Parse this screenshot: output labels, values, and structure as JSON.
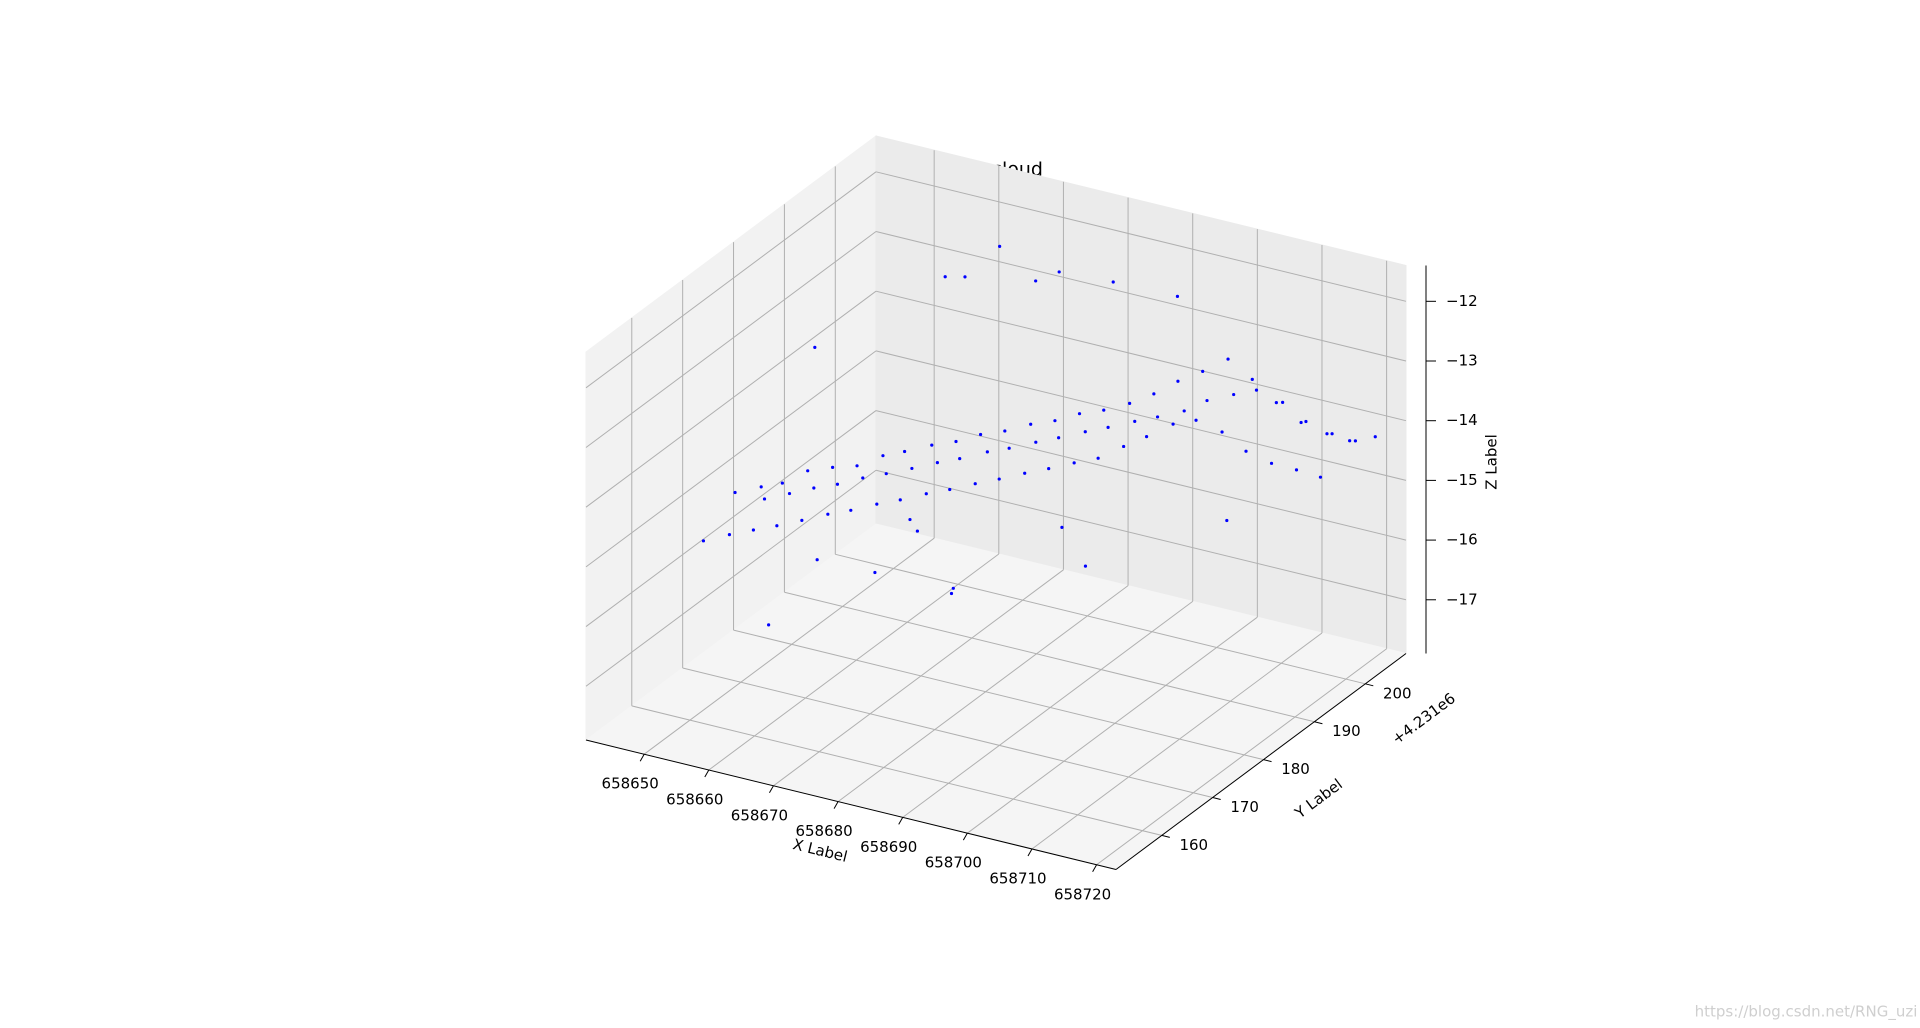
{
  "chart_data": {
    "type": "scatter3d",
    "title": "point cloud",
    "xlabel": "X Label",
    "ylabel": "Y Label",
    "zlabel": "Z Label",
    "y_offset": "+4.231e6",
    "watermark": "https://blog.csdn.net/RNG_uzi",
    "color": "#0000ff",
    "xlim": [
      658641,
      658723
    ],
    "ylim": [
      151,
      208
    ],
    "zlim": [
      -17.9,
      -11.4
    ],
    "xticks": [
      658650,
      658660,
      658670,
      658680,
      658690,
      658700,
      658710,
      658720
    ],
    "yticks": [
      160,
      170,
      180,
      190,
      200
    ],
    "zticks": [
      {
        "value": -17,
        "label": "−17"
      },
      {
        "value": -16,
        "label": "−16"
      },
      {
        "value": -15,
        "label": "−15"
      },
      {
        "value": -14,
        "label": "−14"
      },
      {
        "value": -13,
        "label": "−13"
      },
      {
        "value": -12,
        "label": "−12"
      }
    ],
    "grid": true,
    "x": [
      658645,
      658645.8,
      658646.5,
      658648,
      658648.9,
      658649.5,
      658651,
      658651.7,
      658652.4,
      658654,
      658654.6,
      658655.5,
      658657,
      658657.9,
      658658.4,
      658660,
      658660.5,
      658661.4,
      658663,
      658663.8,
      658664.5,
      658666,
      658666.6,
      658667.5,
      658669,
      658669.7,
      658670.4,
      658672,
      658672.9,
      658673.5,
      658675,
      658675.6,
      658676.4,
      658678,
      658678.8,
      658679.5,
      658681,
      658681.7,
      658682.4,
      658684,
      658684.9,
      658685.5,
      658687,
      658687.6,
      658688.4,
      658690,
      658690.8,
      658691.5,
      658693,
      658693.7,
      658694.4,
      658696,
      658696.9,
      658697.5,
      658699,
      658699.6,
      658700.4,
      658702,
      658702.8,
      658703.5,
      658705,
      658705.7,
      658706.4,
      658708,
      658708.9,
      658709.5,
      658711,
      658711.6,
      658712.4,
      658714,
      658714.8,
      658715.5,
      658717,
      658717.7,
      658718.4,
      658720,
      658720.5,
      658721,
      658650,
      658655,
      658660,
      658665,
      658668,
      658672,
      658662,
      658670,
      658678,
      658684,
      658690,
      658675,
      658648,
      658680,
      658652,
      658700,
      658686,
      658658
    ],
    "y": [
      169,
      174.2,
      179.1,
      170.3,
      175.4,
      180.2,
      171.2,
      176,
      181.3,
      172,
      177.3,
      182,
      173.1,
      178,
      183.3,
      174.4,
      179.5,
      184.1,
      175.1,
      180.4,
      185.2,
      176.4,
      181.1,
      186.4,
      177.2,
      182.5,
      187.1,
      178.5,
      183.2,
      188.6,
      179.3,
      184.6,
      189.2,
      180.5,
      185.3,
      190.5,
      181.4,
      186.7,
      191.3,
      182.6,
      187.4,
      192.6,
      183.5,
      188.8,
      193.4,
      184.7,
      189.5,
      194.7,
      185.6,
      190.9,
      195.5,
      186.8,
      191.6,
      196.8,
      187.5,
      192.9,
      197.6,
      188.9,
      193.7,
      198.9,
      189.6,
      195,
      199.7,
      190.9,
      195.7,
      200.9,
      191.8,
      197,
      201.8,
      193,
      197.8,
      203,
      194.1,
      199.2,
      203.9,
      195,
      200.1,
      204.5,
      185,
      190,
      192,
      195,
      198,
      200,
      188,
      186,
      197,
      200,
      205,
      180,
      178,
      195,
      182,
      202,
      192,
      200
    ],
    "z": [
      -15.6,
      -15.1,
      -15.5,
      -15.5,
      -15,
      -15.4,
      -15.4,
      -14.9,
      -15.3,
      -15.3,
      -14.7,
      -15.2,
      -15.2,
      -14.6,
      -15.1,
      -15.1,
      -14.6,
      -15,
      -15,
      -14.4,
      -14.9,
      -14.9,
      -14.3,
      -14.8,
      -14.8,
      -14.2,
      -14.7,
      -14.7,
      -14.1,
      -14.6,
      -14.6,
      -14,
      -14.5,
      -14.5,
      -13.9,
      -14.4,
      -14.4,
      -13.8,
      -14.3,
      -14.3,
      -13.7,
      -14.2,
      -14.2,
      -13.6,
      -14.1,
      -14.1,
      -13.5,
      -14,
      -14,
      -13.4,
      -13.9,
      -13.8,
      -13.2,
      -13.8,
      -13.6,
      -13,
      -13.6,
      -13.4,
      -12.8,
      -13.5,
      -13.3,
      -12.6,
      -13.4,
      -13.5,
      -12.9,
      -13.6,
      -13.8,
      -13.3,
      -13.9,
      -14,
      -13.6,
      -14.1,
      -14.1,
      -13.8,
      -14.2,
      -14.2,
      -13.9,
      -14.1,
      -16.8,
      -17.2,
      -16.5,
      -12.3,
      -11.9,
      -12.5,
      -16,
      -16.9,
      -12,
      -12.2,
      -12.6,
      -16.3,
      -17.5,
      -16.1,
      -13,
      -15.9,
      -16.4,
      -12.8
    ]
  }
}
